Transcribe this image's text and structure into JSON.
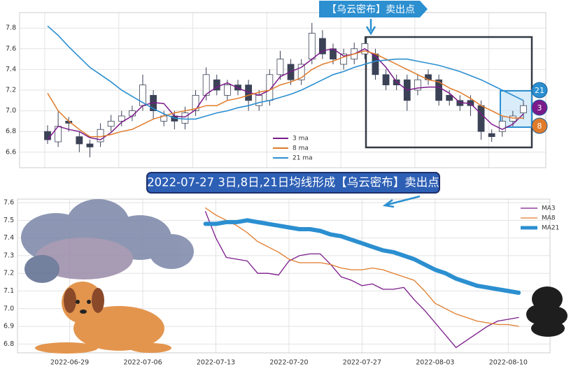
{
  "chart_data": [
    {
      "type": "candlestick",
      "categories": [
        null,
        null,
        null,
        null,
        null,
        null,
        null,
        null,
        null,
        null,
        null,
        null,
        null,
        null,
        null,
        null,
        null,
        null,
        null,
        null,
        null,
        null,
        null,
        null,
        null,
        null,
        null,
        null,
        null,
        null,
        null,
        null,
        null,
        null,
        null,
        null,
        null,
        null,
        null,
        null,
        null,
        null,
        null,
        null,
        null,
        null
      ],
      "open": [
        6.8,
        6.7,
        6.9,
        6.75,
        6.68,
        6.7,
        6.85,
        6.9,
        6.95,
        7.05,
        7.15,
        6.9,
        6.95,
        6.88,
        7.0,
        7.15,
        7.3,
        7.15,
        7.25,
        7.25,
        7.05,
        7.1,
        7.35,
        7.45,
        7.3,
        7.5,
        7.7,
        7.6,
        7.45,
        7.5,
        7.55,
        7.55,
        7.35,
        7.3,
        7.3,
        7.2,
        7.35,
        7.3,
        7.15,
        7.1,
        7.1,
        7.05,
        6.78,
        6.8,
        6.9,
        6.98
      ],
      "high": [
        6.86,
        7.0,
        6.94,
        6.8,
        6.72,
        6.88,
        6.96,
        7.0,
        7.05,
        7.35,
        7.2,
        7.0,
        7.0,
        7.04,
        7.2,
        7.42,
        7.35,
        7.3,
        7.3,
        7.3,
        7.2,
        7.4,
        7.58,
        7.5,
        7.5,
        7.85,
        7.78,
        7.65,
        7.6,
        7.66,
        7.72,
        7.6,
        7.4,
        7.35,
        7.35,
        7.35,
        7.4,
        7.35,
        7.2,
        7.15,
        7.15,
        7.1,
        6.82,
        6.95,
        7.0,
        7.1
      ],
      "low": [
        6.68,
        6.65,
        6.8,
        6.6,
        6.55,
        6.65,
        6.8,
        6.85,
        6.9,
        7.0,
        6.92,
        6.85,
        6.82,
        6.82,
        6.95,
        7.1,
        7.15,
        7.1,
        7.15,
        7.0,
        7.0,
        7.05,
        7.3,
        7.25,
        7.25,
        7.45,
        7.5,
        7.45,
        7.4,
        7.45,
        7.5,
        7.3,
        7.2,
        7.2,
        7.0,
        7.15,
        7.25,
        7.05,
        7.05,
        7.0,
        6.95,
        6.72,
        6.7,
        6.75,
        6.85,
        6.92
      ],
      "close": [
        6.72,
        6.85,
        6.88,
        6.68,
        6.65,
        6.82,
        6.9,
        6.95,
        7.0,
        7.25,
        7.0,
        6.95,
        6.9,
        6.98,
        7.15,
        7.35,
        7.2,
        7.25,
        7.2,
        7.1,
        7.15,
        7.35,
        7.5,
        7.3,
        7.45,
        7.75,
        7.55,
        7.5,
        7.55,
        7.6,
        7.65,
        7.35,
        7.25,
        7.25,
        7.1,
        7.3,
        7.3,
        7.1,
        7.1,
        7.05,
        7.05,
        6.8,
        6.75,
        6.9,
        6.95,
        7.05
      ],
      "up_color": "#ffffff",
      "down_color": "#3b4256",
      "series": [
        {
          "name": "3 ma",
          "color": "#7b1a8a",
          "values": [
            6.72,
            6.85,
            6.82,
            6.8,
            6.74,
            6.72,
            6.79,
            6.89,
            6.95,
            7.05,
            7.08,
            7.07,
            6.95,
            6.94,
            7.01,
            7.16,
            7.23,
            7.27,
            7.22,
            7.18,
            7.15,
            7.2,
            7.33,
            7.38,
            7.42,
            7.5,
            7.58,
            7.6,
            7.53,
            7.55,
            7.6,
            7.53,
            7.42,
            7.28,
            7.2,
            7.22,
            7.23,
            7.23,
            7.17,
            7.08,
            7.07,
            6.97,
            6.87,
            6.82,
            6.87,
            6.97
          ]
        },
        {
          "name": "8 ma",
          "color": "#e07b2a",
          "values": [
            7.17,
            7.0,
            6.9,
            6.82,
            6.75,
            6.75,
            6.77,
            6.8,
            6.82,
            6.87,
            6.92,
            6.95,
            6.98,
            7.0,
            7.02,
            7.05,
            7.05,
            7.1,
            7.12,
            7.15,
            7.18,
            7.2,
            7.25,
            7.28,
            7.32,
            7.4,
            7.45,
            7.48,
            7.52,
            7.55,
            7.58,
            7.55,
            7.5,
            7.45,
            7.4,
            7.35,
            7.3,
            7.28,
            7.22,
            7.18,
            7.12,
            7.05,
            7.0,
            6.95,
            6.93,
            6.93
          ]
        },
        {
          "name": "21 ma",
          "color": "#2b8fd0",
          "values": [
            7.82,
            7.73,
            7.62,
            7.52,
            7.42,
            7.35,
            7.28,
            7.2,
            7.14,
            7.08,
            7.02,
            6.97,
            6.93,
            6.92,
            6.92,
            6.95,
            6.98,
            7.0,
            7.03,
            7.05,
            7.08,
            7.1,
            7.13,
            7.16,
            7.2,
            7.25,
            7.3,
            7.35,
            7.38,
            7.42,
            7.45,
            7.48,
            7.49,
            7.5,
            7.5,
            7.48,
            7.46,
            7.44,
            7.41,
            7.38,
            7.34,
            7.3,
            7.25,
            7.2,
            7.15,
            7.1
          ]
        }
      ],
      "ylim": [
        6.45,
        7.95
      ],
      "yticks": [
        6.6,
        6.8,
        {
          "value": 7,
          "label": "7.0"
        },
        7.2,
        7.4,
        7.6,
        7.8
      ],
      "grid": true,
      "legend": "lower center",
      "annotation": "【乌云密布】卖出点",
      "end_labels": [
        "21",
        "3",
        "8"
      ]
    },
    {
      "type": "line",
      "x": [
        "2022-07-12",
        "2022-07-13",
        "2022-07-14",
        "2022-07-15",
        "2022-07-16",
        "2022-07-17",
        "2022-07-18",
        "2022-07-19",
        "2022-07-20",
        "2022-07-21",
        "2022-07-22",
        "2022-07-23",
        "2022-07-24",
        "2022-07-25",
        "2022-07-26",
        "2022-07-27",
        "2022-07-28",
        "2022-07-29",
        "2022-07-30",
        "2022-07-31",
        "2022-08-01",
        "2022-08-02",
        "2022-08-03",
        "2022-08-04",
        "2022-08-05",
        "2022-08-06",
        "2022-08-07",
        "2022-08-08",
        "2022-08-09",
        "2022-08-10",
        "2022-08-11"
      ],
      "series": [
        {
          "name": "MA3",
          "color": "#7b1a8a",
          "width": 1.3,
          "values": [
            7.55,
            7.4,
            7.29,
            7.28,
            7.27,
            7.2,
            7.2,
            7.19,
            7.27,
            7.3,
            7.31,
            7.31,
            7.25,
            7.18,
            7.16,
            7.13,
            7.14,
            7.11,
            7.11,
            7.12,
            7.05,
            6.99,
            6.92,
            6.85,
            6.78,
            6.82,
            6.86,
            6.9,
            6.93,
            6.94,
            6.95
          ]
        },
        {
          "name": "MA8",
          "color": "#e07b2a",
          "width": 1.3,
          "values": [
            7.57,
            7.53,
            7.5,
            7.47,
            7.43,
            7.38,
            7.35,
            7.32,
            7.28,
            7.26,
            7.26,
            7.26,
            7.25,
            7.23,
            7.22,
            7.22,
            7.23,
            7.22,
            7.2,
            7.18,
            7.16,
            7.1,
            7.03,
            7.0,
            6.97,
            6.95,
            6.93,
            6.92,
            6.91,
            6.91,
            6.9
          ]
        },
        {
          "name": "MA21",
          "color": "#2b8fd0",
          "width": 6,
          "values": [
            7.48,
            7.48,
            7.49,
            7.49,
            7.5,
            7.49,
            7.48,
            7.47,
            7.46,
            7.45,
            7.45,
            7.44,
            7.42,
            7.41,
            7.39,
            7.37,
            7.35,
            7.33,
            7.32,
            7.3,
            7.28,
            7.25,
            7.22,
            7.2,
            7.17,
            7.15,
            7.13,
            7.12,
            7.11,
            7.1,
            7.09
          ]
        }
      ],
      "xlim": [
        "2022-06-24",
        "2022-08-14"
      ],
      "xticks": [
        "2022-06-29",
        "2022-07-06",
        "2022-07-13",
        "2022-07-20",
        "2022-07-27",
        "2022-08-03",
        "2022-08-10"
      ],
      "ylim": [
        6.75,
        7.62
      ],
      "yticks": [
        6.8,
        6.9,
        {
          "value": 7,
          "label": "7.0"
        },
        7.1,
        7.2,
        7.3,
        7.4,
        7.5,
        7.6
      ],
      "grid": true,
      "legend": "upper right",
      "annotation": "2022-07-27 3日,8日,21日均线形成【乌云密布】卖出点"
    }
  ]
}
